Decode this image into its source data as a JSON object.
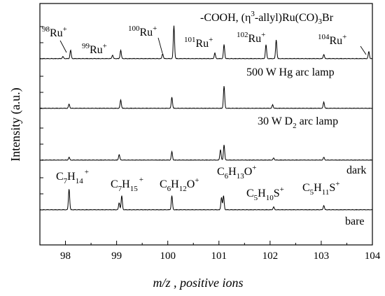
{
  "chart_data": {
    "type": "line",
    "xlabel": "m/z , positive ions",
    "ylabel": "Intensity (a.u.)",
    "xlim": [
      97.5,
      104
    ],
    "x_ticks": [
      98,
      99,
      100,
      101,
      102,
      103,
      104
    ],
    "grid": false,
    "series": [
      {
        "name": "bare",
        "peaks": [
          {
            "x": 98.07,
            "y": 30
          },
          {
            "x": 99.05,
            "y": 10
          },
          {
            "x": 99.1,
            "y": 20
          },
          {
            "x": 100.08,
            "y": 20
          },
          {
            "x": 101.05,
            "y": 18
          },
          {
            "x": 101.09,
            "y": 20
          },
          {
            "x": 102.07,
            "y": 4
          },
          {
            "x": 103.05,
            "y": 6
          }
        ]
      },
      {
        "name": "dark",
        "peaks": [
          {
            "x": 98.07,
            "y": 4
          },
          {
            "x": 99.05,
            "y": 8
          },
          {
            "x": 100.08,
            "y": 12
          },
          {
            "x": 101.03,
            "y": 15
          },
          {
            "x": 101.1,
            "y": 22
          },
          {
            "x": 102.07,
            "y": 3
          },
          {
            "x": 103.05,
            "y": 4
          }
        ]
      },
      {
        "name": "30 W D2 arc lamp",
        "peaks": [
          {
            "x": 98.07,
            "y": 6
          },
          {
            "x": 99.08,
            "y": 12
          },
          {
            "x": 100.08,
            "y": 16
          },
          {
            "x": 101.1,
            "y": 32
          },
          {
            "x": 102.05,
            "y": 5
          },
          {
            "x": 103.05,
            "y": 9
          }
        ]
      },
      {
        "name": "500 W Hg arc lamp",
        "peaks": [
          {
            "x": 97.95,
            "y": 3
          },
          {
            "x": 98.1,
            "y": 12
          },
          {
            "x": 98.92,
            "y": 5
          },
          {
            "x": 99.08,
            "y": 12
          },
          {
            "x": 99.9,
            "y": 7
          },
          {
            "x": 100.12,
            "y": 47
          },
          {
            "x": 100.92,
            "y": 8
          },
          {
            "x": 101.1,
            "y": 20
          },
          {
            "x": 101.92,
            "y": 20
          },
          {
            "x": 102.12,
            "y": 27
          },
          {
            "x": 103.05,
            "y": 6
          },
          {
            "x": 103.93,
            "y": 10
          }
        ]
      }
    ],
    "annotations": {
      "title_line": {
        "prefix": "-COOH, (",
        "eta": "η",
        "eta_sup": "3",
        "middle": "-allyl)Ru(CO)",
        "sub": "3",
        "suffix": "Br"
      },
      "ru_isotopes": [
        {
          "mass": "98",
          "label": "Ru",
          "charge": "+"
        },
        {
          "mass": "99",
          "label": "Ru",
          "charge": "+"
        },
        {
          "mass": "100",
          "label": "Ru",
          "charge": "+"
        },
        {
          "mass": "101",
          "label": "Ru",
          "charge": "+"
        },
        {
          "mass": "102",
          "label": "Ru",
          "charge": "+"
        },
        {
          "mass": "104",
          "label": "Ru",
          "charge": "+"
        }
      ],
      "trace_labels": {
        "hg": "500 W Hg arc lamp",
        "d2_prefix": "30 W D",
        "d2_sub": "2",
        "d2_suffix": " arc lamp",
        "dark": "dark",
        "bare": "bare"
      },
      "fragments": {
        "c7h14": {
          "a": "C",
          "b": "7",
          "c": "H",
          "d": "14",
          "e": "+"
        },
        "c7h15": {
          "a": "C",
          "b": "7",
          "c": "H",
          "d": "15",
          "e": "+"
        },
        "c6h12o": {
          "a": "C",
          "b": "6",
          "c": "H",
          "d": "12",
          "e": "O",
          "f": "+"
        },
        "c6h13o": {
          "a": "C",
          "b": "6",
          "c": "H",
          "d": "13",
          "e": "O",
          "f": "+"
        },
        "c5h10s": {
          "a": "C",
          "b": "5",
          "c": "H",
          "d": "10",
          "e": "S",
          "f": "+"
        },
        "c5h11s": {
          "a": "C",
          "b": "5",
          "c": "H",
          "d": "11",
          "e": "S",
          "f": "+"
        }
      }
    }
  }
}
